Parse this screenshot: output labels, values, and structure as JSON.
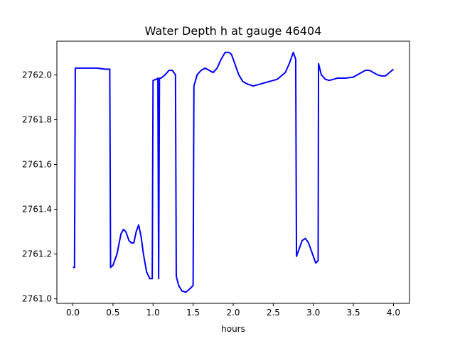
{
  "chart_data": {
    "type": "line",
    "title": "Water Depth h at gauge 46404",
    "xlabel": "hours",
    "ylabel": "",
    "xlim": [
      -0.2,
      4.2
    ],
    "ylim": [
      2760.98,
      2762.15
    ],
    "xticks": [
      0.0,
      0.5,
      1.0,
      1.5,
      2.0,
      2.5,
      3.0,
      3.5,
      4.0
    ],
    "xtick_labels": [
      "0.0",
      "0.5",
      "1.0",
      "1.5",
      "2.0",
      "2.5",
      "3.0",
      "3.5",
      "4.0"
    ],
    "yticks": [
      2761.0,
      2761.2,
      2761.4,
      2761.6,
      2761.8,
      2762.0
    ],
    "ytick_labels": [
      "2761.0",
      "2761.2",
      "2761.4",
      "2761.6",
      "2761.8",
      "2762.0"
    ],
    "grid": false,
    "series": [
      {
        "color": "#0000ff",
        "x": [
          0.0,
          0.02,
          0.03,
          0.1,
          0.2,
          0.3,
          0.4,
          0.45,
          0.46,
          0.47,
          0.5,
          0.55,
          0.6,
          0.63,
          0.66,
          0.7,
          0.73,
          0.76,
          0.79,
          0.82,
          0.85,
          0.88,
          0.92,
          0.96,
          0.99,
          1.0,
          1.04,
          1.06,
          1.07,
          1.08,
          1.1,
          1.15,
          1.2,
          1.24,
          1.28,
          1.29,
          1.32,
          1.36,
          1.41,
          1.46,
          1.5,
          1.51,
          1.55,
          1.6,
          1.65,
          1.7,
          1.75,
          1.8,
          1.85,
          1.9,
          1.95,
          1.98,
          2.02,
          2.07,
          2.12,
          2.17,
          2.25,
          2.35,
          2.45,
          2.55,
          2.65,
          2.7,
          2.75,
          2.78,
          2.79,
          2.82,
          2.86,
          2.9,
          2.94,
          2.98,
          3.03,
          3.06,
          3.065,
          3.1,
          3.15,
          3.2,
          3.3,
          3.4,
          3.5,
          3.6,
          3.65,
          3.7,
          3.75,
          3.8,
          3.85,
          3.9,
          4.0
        ],
        "y": [
          2761.14,
          2761.14,
          2762.03,
          2762.03,
          2762.03,
          2762.03,
          2762.025,
          2762.025,
          2762.025,
          2761.14,
          2761.15,
          2761.2,
          2761.29,
          2761.31,
          2761.3,
          2761.26,
          2761.25,
          2761.25,
          2761.3,
          2761.33,
          2761.28,
          2761.2,
          2761.12,
          2761.09,
          2761.09,
          2761.975,
          2761.98,
          2761.985,
          2761.09,
          2761.985,
          2761.985,
          2762.0,
          2762.02,
          2762.02,
          2762.0,
          2761.1,
          2761.06,
          2761.035,
          2761.03,
          2761.045,
          2761.06,
          2761.95,
          2762.0,
          2762.02,
          2762.03,
          2762.02,
          2762.01,
          2762.03,
          2762.07,
          2762.1,
          2762.1,
          2762.09,
          2762.05,
          2762.0,
          2761.97,
          2761.96,
          2761.95,
          2761.96,
          2761.97,
          2761.98,
          2762.01,
          2762.05,
          2762.1,
          2762.07,
          2761.19,
          2761.22,
          2761.26,
          2761.27,
          2761.25,
          2761.21,
          2761.16,
          2761.17,
          2762.05,
          2762.0,
          2761.98,
          2761.975,
          2761.985,
          2761.985,
          2761.99,
          2762.01,
          2762.02,
          2762.02,
          2762.01,
          2762.0,
          2761.995,
          2761.995,
          2762.025
        ]
      }
    ]
  }
}
